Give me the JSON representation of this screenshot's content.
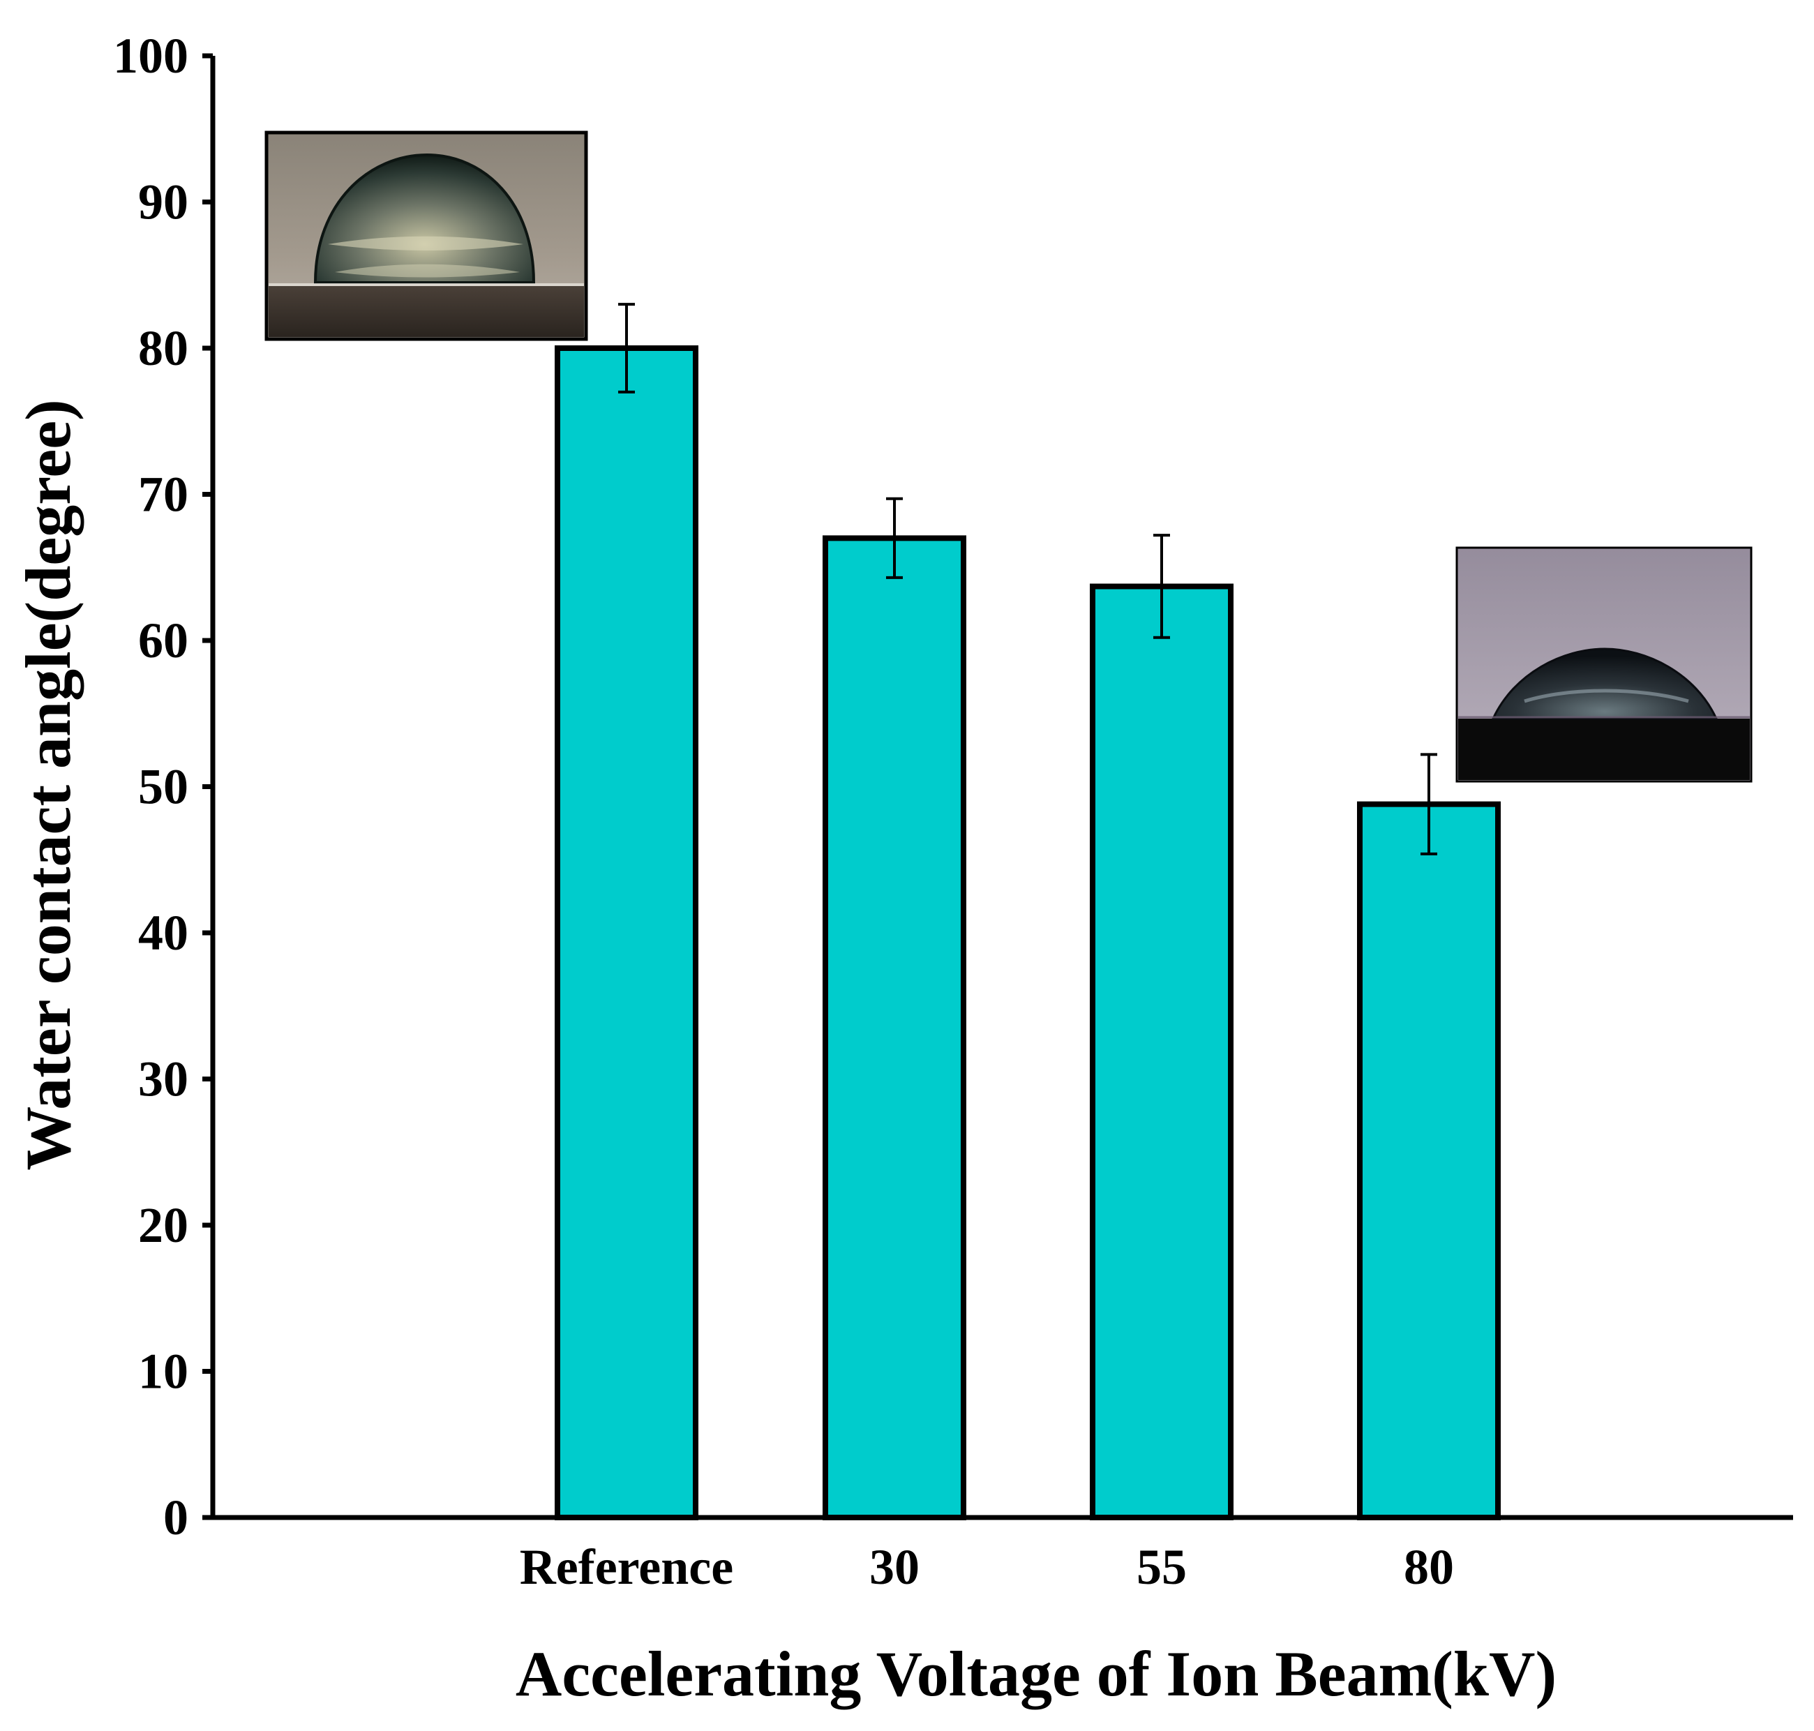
{
  "chart_data": {
    "type": "bar",
    "categories": [
      "Reference",
      "30",
      "55",
      "80"
    ],
    "values": [
      80,
      67,
      63.7,
      48.8
    ],
    "errors": [
      3,
      2.7,
      3.5,
      3.4
    ],
    "xlabel": "Accelerating Voltage of Ion Beam(kV)",
    "ylabel": "Water contact angle(degree)",
    "ylim": [
      0,
      100
    ],
    "yticks": [
      0,
      10,
      20,
      30,
      40,
      50,
      60,
      70,
      80,
      90,
      100
    ],
    "grid": false,
    "legend": "none",
    "bar_color": "#00CCCC",
    "bar_edge_color": "#000000",
    "insets": [
      {
        "depicts": "water-droplet-photo",
        "attached_to": "Reference"
      },
      {
        "depicts": "water-droplet-photo",
        "attached_to": "80"
      }
    ]
  }
}
